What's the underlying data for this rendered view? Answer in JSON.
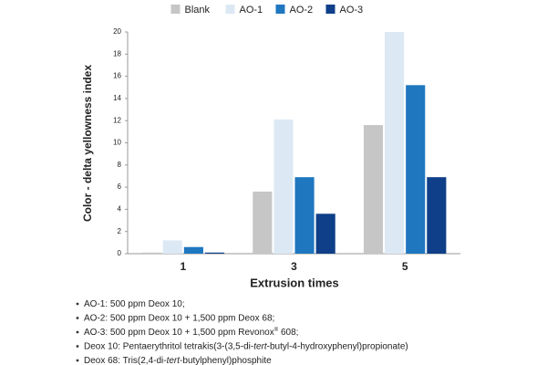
{
  "chart_data": {
    "type": "bar",
    "y_label": "Color - delta yellowness index",
    "x_label": "Extrusion times",
    "categories": [
      "1",
      "3",
      "5"
    ],
    "series": [
      {
        "name": "Blank",
        "color": "#c6c6c6",
        "values": [
          0.1,
          5.6,
          11.6
        ]
      },
      {
        "name": "AO-1",
        "color": "#dce9f4",
        "values": [
          1.2,
          12.1,
          20
        ]
      },
      {
        "name": "AO-2",
        "color": "#1f77c0",
        "values": [
          0.6,
          6.9,
          15.2
        ]
      },
      {
        "name": "AO-3",
        "color": "#0e3f88",
        "values": [
          0.1,
          3.6,
          6.9
        ]
      }
    ],
    "ylim": [
      0,
      20
    ],
    "yticks": [
      0,
      2,
      4,
      6,
      8,
      10,
      12,
      14,
      16,
      18,
      20
    ],
    "grid": false,
    "legend": "top"
  },
  "notes": [
    [
      {
        "text": "AO-1: 500 ppm Deox 10;"
      }
    ],
    [
      {
        "text": "AO-2: 500 ppm Deox 10 + 1,500 ppm Deox 68;"
      }
    ],
    [
      {
        "text": "AO-3: 500 ppm Deox 10 + 1,500 ppm Revonox"
      },
      {
        "text": "®",
        "sup": true
      },
      {
        "text": " 608;"
      }
    ],
    [
      {
        "text": "Deox 10: Pentaerythritol tetrakis(3-(3,5-di-"
      },
      {
        "text": "tert",
        "italic": true
      },
      {
        "text": "-butyl-4-hydroxyphenyl)propionate)"
      }
    ],
    [
      {
        "text": "Deox 68: Tris(2,4-di-"
      },
      {
        "text": "tert",
        "italic": true
      },
      {
        "text": "-butylphenyl)phosphite"
      }
    ]
  ]
}
